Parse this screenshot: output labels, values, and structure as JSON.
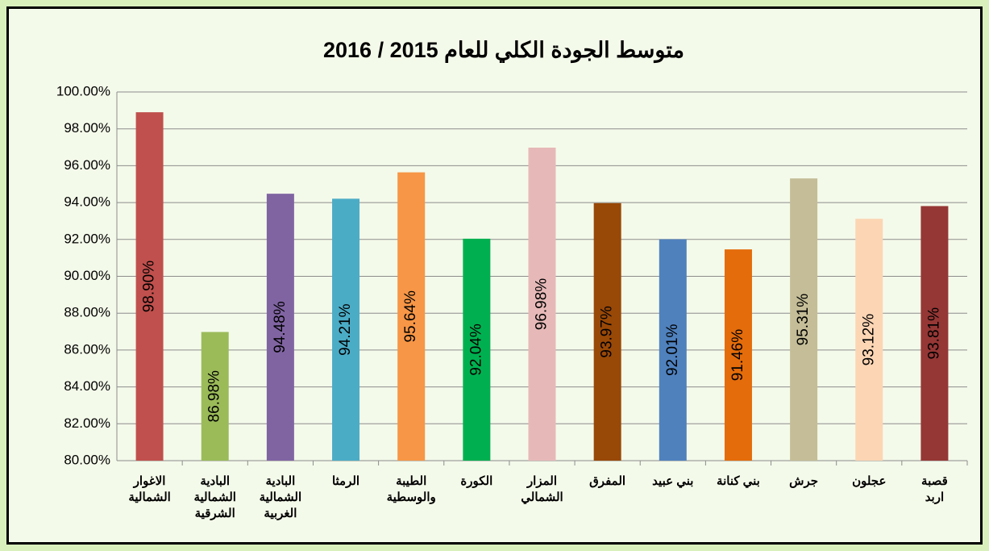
{
  "chart_data": {
    "type": "bar",
    "title": "متوسط الجودة  الكلي للعام 2015 / 2016",
    "categories": [
      "الاغوار\nالشمالية",
      "البادية\nالشمالية\nالشرقية",
      "البادية\nالشمالية\nالغربية",
      "الرمثا",
      "الطيبة\nوالوسطية",
      "الكورة",
      "المزار\nالشمالي",
      "المفرق",
      "بني عبيد",
      "بني كنانة",
      "جرش",
      "عجلون",
      "قصبة\nاربد"
    ],
    "values": [
      98.9,
      86.98,
      94.48,
      94.21,
      95.64,
      92.04,
      96.98,
      93.97,
      92.01,
      91.46,
      95.31,
      93.12,
      93.81
    ],
    "value_labels": [
      "98.90%",
      "86.98%",
      "94.48%",
      "94.21%",
      "95.64%",
      "92.04%",
      "96.98%",
      "93.97%",
      "92.01%",
      "91.46%",
      "95.31%",
      "93.12%",
      "93.81%"
    ],
    "colors": [
      "#c0504d",
      "#9bbb59",
      "#8064a2",
      "#4bacc6",
      "#f79646",
      "#00b050",
      "#e6b9b8",
      "#984807",
      "#4f81bd",
      "#e46c0a",
      "#c4bd97",
      "#fcd5b4",
      "#953735"
    ],
    "ylim": [
      80,
      100
    ],
    "yticks": [
      {
        "value": 80,
        "label": "80.00%"
      },
      {
        "value": 82,
        "label": "82.00%"
      },
      {
        "value": 84,
        "label": "84.00%"
      },
      {
        "value": 86,
        "label": "86.00%"
      },
      {
        "value": 88,
        "label": "88.00%"
      },
      {
        "value": 90,
        "label": "90.00%"
      },
      {
        "value": 92,
        "label": "92.00%"
      },
      {
        "value": 94,
        "label": "94.00%"
      },
      {
        "value": 96,
        "label": "96.00%"
      },
      {
        "value": 98,
        "label": "98.00%"
      },
      {
        "value": 100,
        "label": "100.00%"
      }
    ],
    "grid": true
  }
}
